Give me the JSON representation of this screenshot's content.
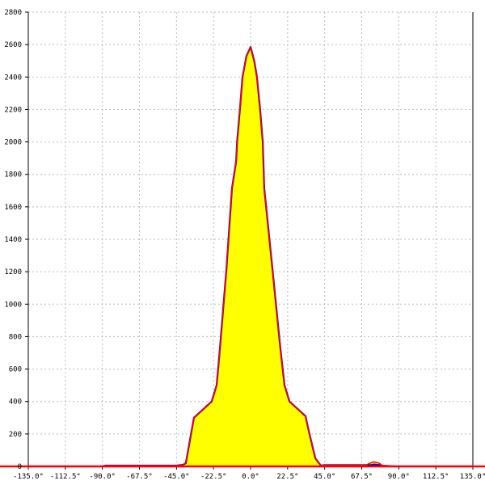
{
  "chart_data": {
    "type": "area",
    "title": "",
    "xlabel": "",
    "ylabel": "",
    "xlim": [
      -135,
      135
    ],
    "ylim": [
      0,
      2800
    ],
    "grid": true,
    "x_ticks": [
      "-135.0°",
      "-112.5°",
      "-90.0°",
      "-67.5°",
      "-45.0°",
      "-22.5°",
      "0.0°",
      "22.5°",
      "45.0°",
      "67.5°",
      "90.0°",
      "112.5°",
      "135.0°"
    ],
    "x_tick_values": [
      -135,
      -112.5,
      -90,
      -67.5,
      -45,
      -22.5,
      0,
      22.5,
      45,
      67.5,
      90,
      112.5,
      135
    ],
    "y_ticks": [
      "0",
      "200",
      "400",
      "600",
      "800",
      "1000",
      "1200",
      "1400",
      "1600",
      "1800",
      "2000",
      "2200",
      "2400",
      "2600",
      "2800"
    ],
    "y_tick_values": [
      0,
      200,
      400,
      600,
      800,
      1000,
      1200,
      1400,
      1600,
      1800,
      2000,
      2200,
      2400,
      2600,
      2800
    ],
    "colors": {
      "fill": "#ffff00",
      "series_a": "#0000cc",
      "series_b": "#ff0000",
      "grid": "#bbbbbb",
      "baseline": "#ff0000"
    },
    "series": [
      {
        "x": [
          -135,
          -90,
          -88,
          -62,
          -60,
          -45,
          -41,
          -39.3,
          -34.4,
          -23.6,
          -20.6,
          -18.7,
          -14.7,
          -11.3,
          -8.8,
          -8.2,
          -6.5,
          -4.9,
          -2.5,
          0,
          2.2,
          3.9,
          5.8,
          7.4,
          8.3,
          13.3,
          18.2,
          20.6,
          23.6,
          33.4,
          35.3,
          39.3,
          42.7,
          45,
          70,
          73,
          75,
          78,
          80,
          85,
          88,
          135
        ],
        "y": [
          0,
          0,
          5,
          5,
          5,
          5,
          10,
          20,
          300,
          400,
          500,
          717,
          1215,
          1715,
          1880,
          2000,
          2200,
          2400,
          2530,
          2585,
          2500,
          2400,
          2200,
          2000,
          1715,
          1215,
          717,
          500,
          400,
          310,
          220,
          50,
          5,
          8,
          8,
          8,
          12,
          8,
          4,
          2,
          0,
          0
        ]
      },
      {
        "x": [
          -135,
          -90,
          -88,
          -62,
          -60,
          -45,
          -41,
          -39.3,
          -34.4,
          -23.6,
          -20.6,
          -18.7,
          -14.7,
          -11.3,
          -8.8,
          -8.2,
          -6.5,
          -4.9,
          -2.5,
          0,
          2.2,
          3.9,
          5.8,
          7.4,
          8.3,
          13.3,
          18.2,
          20.6,
          23.6,
          33.4,
          35.3,
          39.3,
          42.7,
          45,
          70,
          73,
          75,
          78,
          80,
          85,
          88,
          135
        ],
        "y": [
          0,
          0,
          5,
          5,
          5,
          5,
          10,
          20,
          300,
          400,
          500,
          717,
          1215,
          1715,
          1880,
          2000,
          2200,
          2400,
          2530,
          2585,
          2500,
          2400,
          2200,
          2000,
          1715,
          1215,
          717,
          500,
          400,
          310,
          220,
          50,
          5,
          8,
          8,
          22,
          28,
          20,
          6,
          3,
          0,
          0
        ]
      }
    ]
  }
}
